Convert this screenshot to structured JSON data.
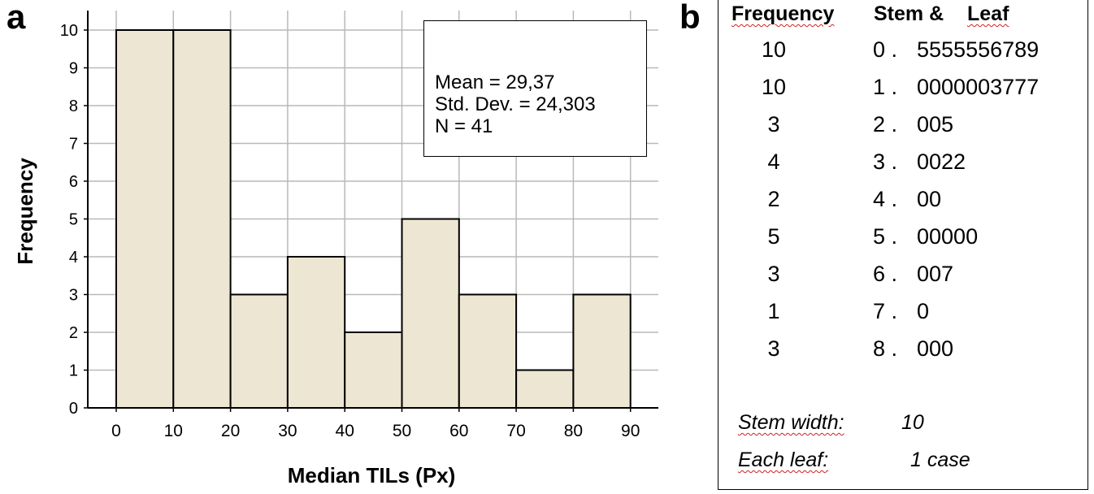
{
  "panel_a_label": "a",
  "panel_b_label": "b",
  "chart_data": {
    "type": "bar",
    "subtype": "histogram",
    "bin_edges": [
      0,
      10,
      20,
      30,
      40,
      50,
      60,
      70,
      80,
      90
    ],
    "values": [
      10,
      10,
      3,
      4,
      2,
      5,
      3,
      1,
      3
    ],
    "x_ticks": [
      "0",
      "10",
      "20",
      "30",
      "40",
      "50",
      "60",
      "70",
      "80",
      "90"
    ],
    "y_ticks": [
      "0",
      "1",
      "2",
      "3",
      "4",
      "5",
      "6",
      "7",
      "8",
      "9",
      "10"
    ],
    "xlabel": "Median TILs (Px)",
    "ylabel": "Frequency",
    "xlim": [
      -5,
      95
    ],
    "ylim": [
      0,
      10.5
    ],
    "grid": true,
    "bar_color": "#ede6d2",
    "stats": {
      "mean": "Mean = 29,37",
      "std": "Std. Dev. = 24,303",
      "n": "N = 41"
    }
  },
  "stem_leaf": {
    "header_frequency": "Frequency",
    "header_stem": "Stem &",
    "header_leaf": "Leaf",
    "rows": [
      {
        "freq": "10",
        "stem": "0 .",
        "leaf": "5555556789"
      },
      {
        "freq": "10",
        "stem": "1 .",
        "leaf": "0000003777"
      },
      {
        "freq": "3",
        "stem": "2 .",
        "leaf": "005"
      },
      {
        "freq": "4",
        "stem": "3 .",
        "leaf": "0022"
      },
      {
        "freq": "2",
        "stem": "4 .",
        "leaf": "00"
      },
      {
        "freq": "5",
        "stem": "5 .",
        "leaf": "00000"
      },
      {
        "freq": "3",
        "stem": "6 .",
        "leaf": "007"
      },
      {
        "freq": "1",
        "stem": "7 .",
        "leaf": "0"
      },
      {
        "freq": "3",
        "stem": "8 .",
        "leaf": "000"
      }
    ],
    "stem_width_label": "Stem width:",
    "stem_width_value": "10",
    "each_leaf_label": "Each leaf:",
    "each_leaf_value": "1 case"
  }
}
